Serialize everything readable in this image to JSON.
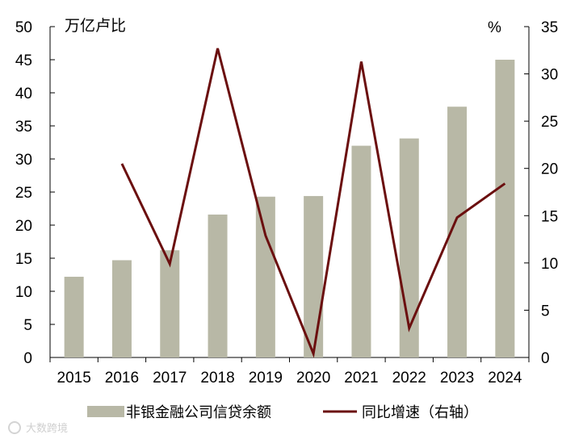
{
  "chart_data": {
    "type": "bar",
    "categories": [
      "2015",
      "2016",
      "2017",
      "2018",
      "2019",
      "2020",
      "2021",
      "2022",
      "2023",
      "2024"
    ],
    "series": [
      {
        "name": "非银金融公司信贷余额",
        "type": "bar",
        "axis": "left",
        "color": "#b8b8a6",
        "values": [
          12.2,
          14.7,
          16.2,
          21.6,
          24.3,
          24.4,
          32.0,
          33.1,
          37.9,
          45.0
        ]
      },
      {
        "name": "同比增速（右轴）",
        "type": "line",
        "axis": "right",
        "color": "#6b0f0f",
        "values": [
          null,
          20.5,
          9.9,
          32.7,
          12.9,
          0.4,
          31.3,
          3.1,
          14.8,
          18.4
        ]
      }
    ],
    "left_axis": {
      "unit": "万亿卢比",
      "ylim": [
        0,
        50
      ],
      "ticks": [
        "0",
        "5",
        "10",
        "15",
        "20",
        "25",
        "30",
        "35",
        "40",
        "45",
        "50"
      ]
    },
    "right_axis": {
      "unit": "%",
      "ylim": [
        0,
        35
      ],
      "ticks": [
        "0",
        "5",
        "10",
        "15",
        "20",
        "25",
        "30",
        "35"
      ]
    },
    "legend": {
      "position": "bottom",
      "bar_label": "非银金融公司信贷余额",
      "line_label": "同比增速（右轴）"
    },
    "grid": false
  },
  "watermark": {
    "text": "大数跨境"
  }
}
